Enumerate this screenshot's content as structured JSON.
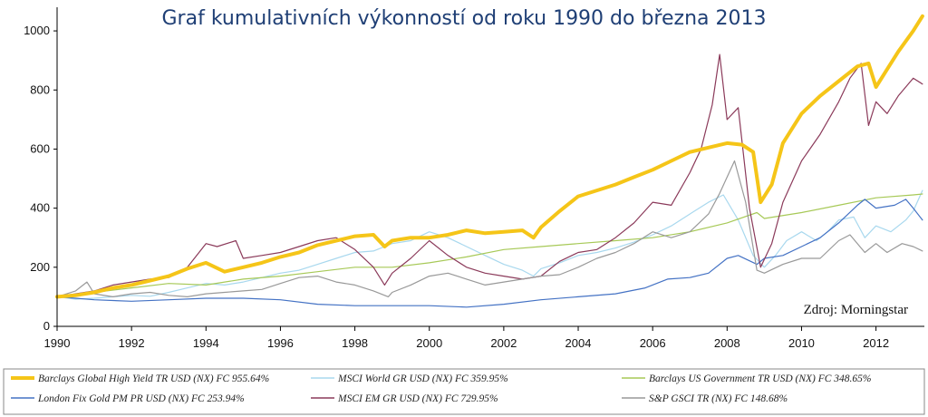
{
  "chart_data": {
    "type": "line",
    "title": "Graf kumulativních výkonností od roku 1990 do března 2013",
    "source_note": "Zdroj: Morningstar",
    "xlim": [
      1990,
      2013.3
    ],
    "ylim": [
      0,
      1080
    ],
    "x_ticks": [
      1990,
      1992,
      1994,
      1996,
      1998,
      2000,
      2002,
      2004,
      2006,
      2008,
      2010,
      2012
    ],
    "y_ticks": [
      0,
      200,
      400,
      600,
      800,
      1000
    ],
    "grid": false,
    "legend_position": "bottom",
    "series": [
      {
        "name": "Barclays Global High Yield TR USD (NX) FC 955.64%",
        "color": "#f5c518",
        "width": 4,
        "x": [
          1990,
          1990.5,
          1991,
          1991.5,
          1992,
          1992.5,
          1993,
          1993.5,
          1994,
          1994.5,
          1995,
          1995.5,
          1996,
          1996.5,
          1997,
          1997.5,
          1998,
          1998.5,
          1998.8,
          1999,
          1999.5,
          2000,
          2000.5,
          2001,
          2001.5,
          2002,
          2002.5,
          2002.8,
          2003,
          2003.5,
          2004,
          2004.5,
          2005,
          2005.5,
          2006,
          2006.5,
          2007,
          2007.5,
          2008,
          2008.4,
          2008.7,
          2008.9,
          2009.2,
          2009.5,
          2010,
          2010.5,
          2011,
          2011.5,
          2011.8,
          2012,
          2012.3,
          2012.6,
          2013,
          2013.25
        ],
        "y": [
          100,
          105,
          115,
          130,
          140,
          155,
          170,
          195,
          215,
          185,
          200,
          215,
          235,
          250,
          275,
          290,
          305,
          310,
          270,
          290,
          300,
          300,
          310,
          325,
          315,
          320,
          325,
          300,
          335,
          390,
          440,
          460,
          480,
          505,
          530,
          560,
          590,
          605,
          620,
          615,
          590,
          420,
          480,
          620,
          720,
          780,
          830,
          880,
          890,
          810,
          870,
          930,
          1000,
          1050
        ]
      },
      {
        "name": "MSCI World GR USD (NX) FC 359.95%",
        "color": "#a8d8ee",
        "width": 1.2,
        "x": [
          1990,
          1990.5,
          1991,
          1991.5,
          1992,
          1992.5,
          1993,
          1993.5,
          1994,
          1994.5,
          1995,
          1995.5,
          1996,
          1996.5,
          1997,
          1997.5,
          1998,
          1998.5,
          1999,
          1999.5,
          2000,
          2000.5,
          2001,
          2001.5,
          2002,
          2002.5,
          2002.8,
          2003,
          2003.5,
          2004,
          2004.5,
          2005,
          2005.5,
          2006,
          2006.5,
          2007,
          2007.5,
          2007.9,
          2008.3,
          2008.7,
          2009,
          2009.3,
          2009.6,
          2010,
          2010.4,
          2010.7,
          2011,
          2011.4,
          2011.7,
          2012,
          2012.4,
          2012.8,
          2013,
          2013.25
        ],
        "y": [
          100,
          92,
          95,
          100,
          105,
          102,
          115,
          130,
          145,
          140,
          150,
          165,
          180,
          190,
          210,
          230,
          250,
          255,
          280,
          290,
          320,
          300,
          270,
          240,
          210,
          190,
          170,
          195,
          215,
          240,
          250,
          265,
          285,
          310,
          340,
          380,
          420,
          445,
          360,
          240,
          200,
          240,
          290,
          320,
          290,
          320,
          360,
          370,
          300,
          340,
          320,
          360,
          390,
          460
        ]
      },
      {
        "name": "Barclays US Government TR USD (NX) FC 348.65%",
        "color": "#a7c957",
        "width": 1.2,
        "x": [
          1990,
          1991,
          1992,
          1993,
          1994,
          1995,
          1996,
          1997,
          1998,
          1999,
          2000,
          2001,
          2002,
          2003,
          2004,
          2005,
          2006,
          2007,
          2008,
          2008.8,
          2009,
          2010,
          2011,
          2012,
          2013,
          2013.25
        ],
        "y": [
          100,
          115,
          130,
          145,
          140,
          160,
          170,
          185,
          200,
          200,
          215,
          235,
          260,
          270,
          280,
          290,
          300,
          320,
          350,
          385,
          365,
          385,
          410,
          435,
          445,
          448
        ]
      },
      {
        "name": "London Fix Gold PM PR USD (NX) FC 253.94%",
        "color": "#4472c4",
        "width": 1.2,
        "x": [
          1990,
          1990.5,
          1991,
          1992,
          1993,
          1994,
          1995,
          1996,
          1997,
          1998,
          1999,
          2000,
          2001,
          2002,
          2003,
          2004,
          2005,
          2005.8,
          2006.4,
          2007,
          2007.5,
          2008,
          2008.3,
          2008.8,
          2009,
          2009.5,
          2010,
          2010.5,
          2011,
          2011.5,
          2011.7,
          2012,
          2012.5,
          2012.8,
          2013,
          2013.25
        ],
        "y": [
          100,
          95,
          90,
          85,
          90,
          95,
          95,
          90,
          75,
          70,
          70,
          70,
          65,
          75,
          90,
          100,
          110,
          130,
          160,
          165,
          180,
          230,
          240,
          210,
          230,
          240,
          270,
          300,
          350,
          410,
          430,
          400,
          410,
          430,
          400,
          360
        ]
      },
      {
        "name": "MSCI EM GR USD (NX) FC 729.95%",
        "color": "#8b3a5a",
        "width": 1.2,
        "x": [
          1990,
          1990.5,
          1991,
          1991.5,
          1992,
          1992.5,
          1993,
          1993.5,
          1994,
          1994.3,
          1994.8,
          1995,
          1995.5,
          1996,
          1996.5,
          1997,
          1997.5,
          1998,
          1998.5,
          1998.8,
          1999,
          1999.5,
          2000,
          2000.5,
          2001,
          2001.5,
          2002,
          2002.5,
          2003,
          2003.5,
          2004,
          2004.5,
          2005,
          2005.5,
          2006,
          2006.5,
          2007,
          2007.3,
          2007.6,
          2007.8,
          2008,
          2008.3,
          2008.6,
          2008.9,
          2009.2,
          2009.5,
          2010,
          2010.5,
          2011,
          2011.3,
          2011.6,
          2011.8,
          2012,
          2012.3,
          2012.6,
          2013,
          2013.25
        ],
        "y": [
          100,
          110,
          120,
          140,
          150,
          160,
          165,
          200,
          280,
          270,
          290,
          230,
          240,
          250,
          270,
          290,
          300,
          260,
          200,
          140,
          180,
          230,
          290,
          240,
          200,
          180,
          170,
          160,
          170,
          220,
          250,
          260,
          300,
          350,
          420,
          410,
          520,
          600,
          750,
          920,
          700,
          740,
          400,
          200,
          280,
          420,
          560,
          650,
          760,
          840,
          890,
          680,
          760,
          720,
          780,
          840,
          820
        ]
      },
      {
        "name": "S&P GSCI TR (NX) FC 148.68%",
        "color": "#999999",
        "width": 1.2,
        "x": [
          1990,
          1990.5,
          1990.8,
          1991,
          1991.5,
          1992,
          1992.5,
          1993,
          1993.5,
          1994,
          1994.5,
          1995,
          1995.5,
          1996,
          1996.5,
          1997,
          1997.5,
          1998,
          1998.5,
          1998.9,
          1999,
          1999.5,
          2000,
          2000.5,
          2001,
          2001.5,
          2002,
          2002.5,
          2003,
          2003.5,
          2004,
          2004.5,
          2005,
          2005.5,
          2006,
          2006.5,
          2007,
          2007.5,
          2007.8,
          2008.2,
          2008.5,
          2008.8,
          2009,
          2009.5,
          2010,
          2010.5,
          2011,
          2011.3,
          2011.7,
          2012,
          2012.3,
          2012.7,
          2013,
          2013.25
        ],
        "y": [
          100,
          120,
          150,
          110,
          100,
          110,
          115,
          105,
          100,
          110,
          115,
          120,
          125,
          145,
          165,
          170,
          150,
          140,
          120,
          100,
          115,
          140,
          170,
          180,
          160,
          140,
          150,
          160,
          170,
          175,
          200,
          230,
          250,
          280,
          320,
          300,
          320,
          380,
          450,
          560,
          420,
          190,
          180,
          210,
          230,
          230,
          290,
          310,
          250,
          280,
          250,
          280,
          270,
          255
        ]
      }
    ]
  }
}
